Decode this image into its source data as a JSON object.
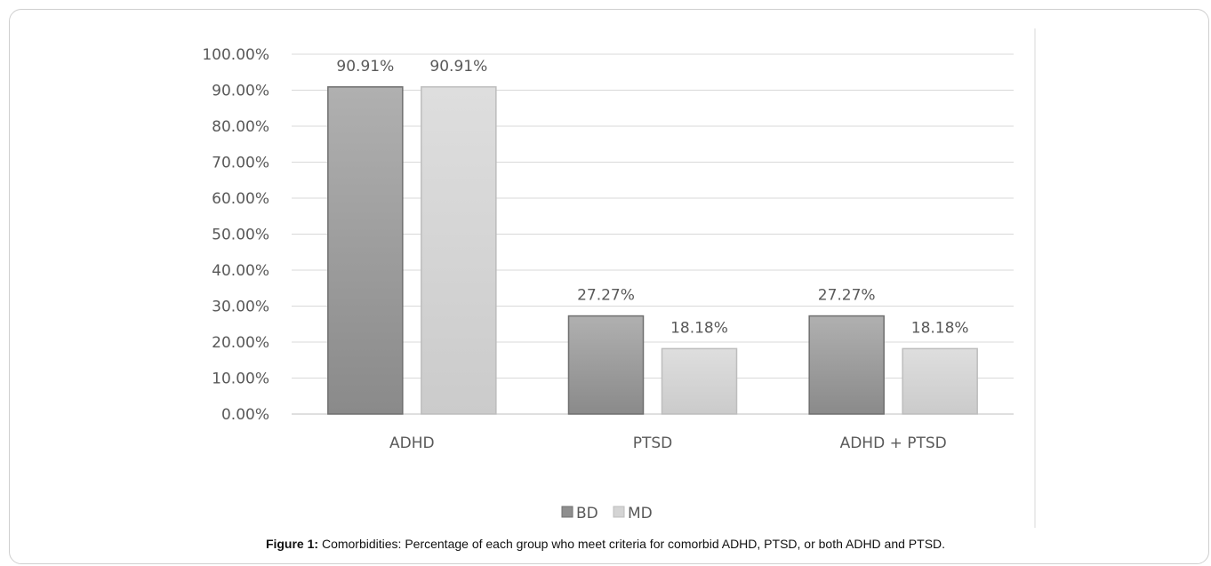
{
  "chart_data": {
    "type": "bar",
    "categories": [
      "ADHD",
      "PTSD",
      "ADHD + PTSD"
    ],
    "series": [
      {
        "name": "BD",
        "values": [
          90.91,
          27.27,
          27.27
        ],
        "labels": [
          "90.91%",
          "27.27%",
          "27.27%"
        ],
        "color": "#9a9a9a"
      },
      {
        "name": "MD",
        "values": [
          90.91,
          18.18,
          18.18
        ],
        "labels": [
          "90.91%",
          "18.18%",
          "18.18%"
        ],
        "color": "#d4d4d4"
      }
    ],
    "y_ticks": [
      "0.00%",
      "10.00%",
      "20.00%",
      "30.00%",
      "40.00%",
      "50.00%",
      "60.00%",
      "70.00%",
      "80.00%",
      "90.00%",
      "100.00%"
    ],
    "ylim": [
      0,
      100
    ],
    "grid": true,
    "legend_position": "bottom"
  },
  "caption": {
    "label": "Figure 1:",
    "text": " Comorbidities: Percentage of each group who meet criteria for comorbid ADHD, PTSD, or both ADHD and PTSD."
  }
}
